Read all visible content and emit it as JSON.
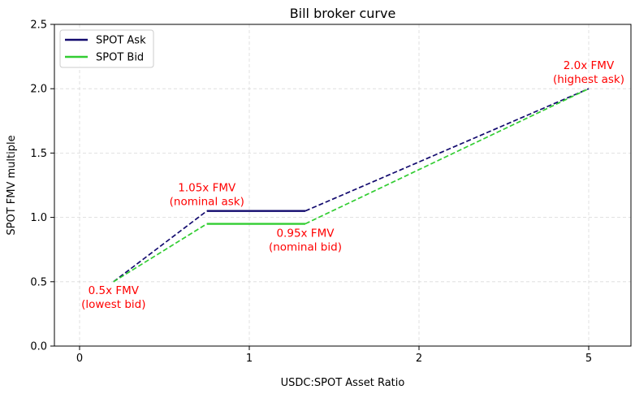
{
  "chart_data": {
    "type": "line",
    "title": "Bill broker curve",
    "xlabel": "USDC:SPOT Asset Ratio",
    "ylabel": "SPOT FMV multiple",
    "x_ticks": [
      "0",
      "1",
      "2",
      "5"
    ],
    "y_ticks": [
      "0.0",
      "0.5",
      "1.0",
      "1.5",
      "2.0",
      "2.5"
    ],
    "ylim": [
      0,
      2.5
    ],
    "grid": true,
    "legend_position": "upper-left",
    "series": [
      {
        "name": "SPOT Ask",
        "color": "#120a6e",
        "points": [
          [
            0.2,
            0.5
          ],
          [
            0.75,
            1.05
          ],
          [
            1.33,
            1.05
          ],
          [
            3.0,
            2.0
          ]
        ],
        "solid_segment": [
          0.75,
          1.33
        ]
      },
      {
        "name": "SPOT Bid",
        "color": "#32cd32",
        "points": [
          [
            0.2,
            0.5
          ],
          [
            0.75,
            0.95
          ],
          [
            1.33,
            0.95
          ],
          [
            3.0,
            2.0
          ]
        ],
        "solid_segment": [
          0.75,
          1.33
        ]
      }
    ],
    "annotations": [
      {
        "lines": [
          "0.5x FMV",
          "(lowest bid)"
        ],
        "x": 0.2,
        "y": 0.5,
        "color": "#ff0000",
        "position": "below"
      },
      {
        "lines": [
          "1.05x FMV",
          "(nominal ask)"
        ],
        "x": 0.75,
        "y": 1.05,
        "color": "#ff0000",
        "position": "above"
      },
      {
        "lines": [
          "0.95x FMV",
          "(nominal bid)"
        ],
        "x": 1.33,
        "y": 0.95,
        "color": "#ff0000",
        "position": "below"
      },
      {
        "lines": [
          "2.0x FMV",
          "(highest ask)"
        ],
        "x": 3.0,
        "y": 2.0,
        "color": "#ff0000",
        "position": "above"
      }
    ]
  }
}
